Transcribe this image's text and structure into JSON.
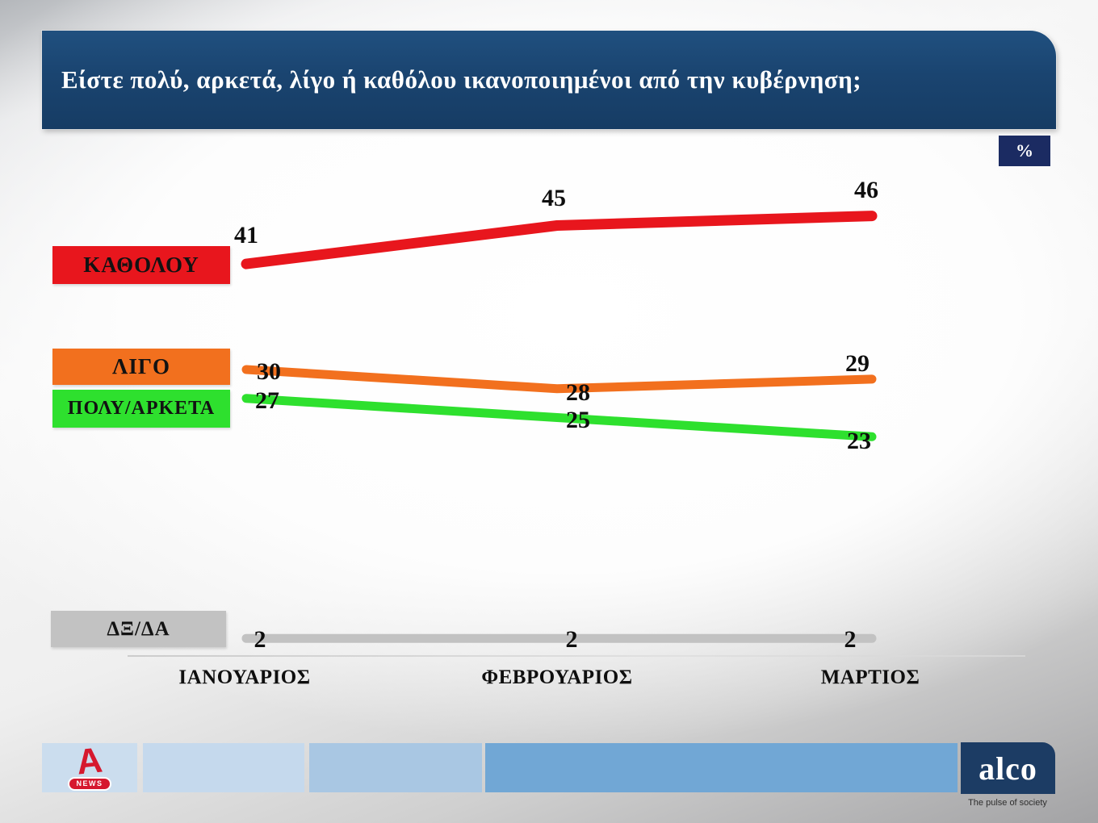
{
  "title": "Είστε πολύ, αρκετά, λίγο ή καθόλου ικανοποιημένοι από την κυβέρνηση;",
  "unit_badge": "%",
  "chart_data": {
    "type": "line",
    "categories": [
      "ΙΑΝΟΥΑΡΙΟΣ",
      "ΦΕΒΡΟΥΑΡΙΟΣ",
      "ΜΑΡΤΙΟΣ"
    ],
    "series": [
      {
        "name": "ΚΑΘΟΛΟΥ",
        "values": [
          41,
          45,
          46
        ],
        "color": "#e8161d"
      },
      {
        "name": "ΛΙΓΟ",
        "values": [
          30,
          28,
          29
        ],
        "color": "#f2701e"
      },
      {
        "name": "ΠΟΛΥ/ΑΡΚΕΤΑ",
        "values": [
          27,
          25,
          23
        ],
        "color": "#2ee02e"
      },
      {
        "name": "ΔΞ/ΔΑ",
        "values": [
          2,
          2,
          2
        ],
        "color": "#c2c2c2"
      }
    ],
    "title": "Είστε πολύ, αρκετά, λίγο ή καθόλου ικανοποιημένοι από την κυβέρνηση;",
    "xlabel": "",
    "ylabel": "%",
    "ylim": [
      0,
      50
    ],
    "grid": false,
    "legend_position": "left",
    "data_labels": true
  },
  "colors": {
    "title_bar": "#1a4470",
    "badge": "#1b2b62",
    "alco_box": "#1c3c64",
    "footer_blues": [
      "#cbddee",
      "#c5d9ed",
      "#a9c7e3",
      "#71a7d5"
    ]
  },
  "footer": {
    "alpha_letter": "A",
    "alpha_news": "NEWS",
    "alco_name": "alco",
    "alco_tagline": "The pulse of society"
  }
}
